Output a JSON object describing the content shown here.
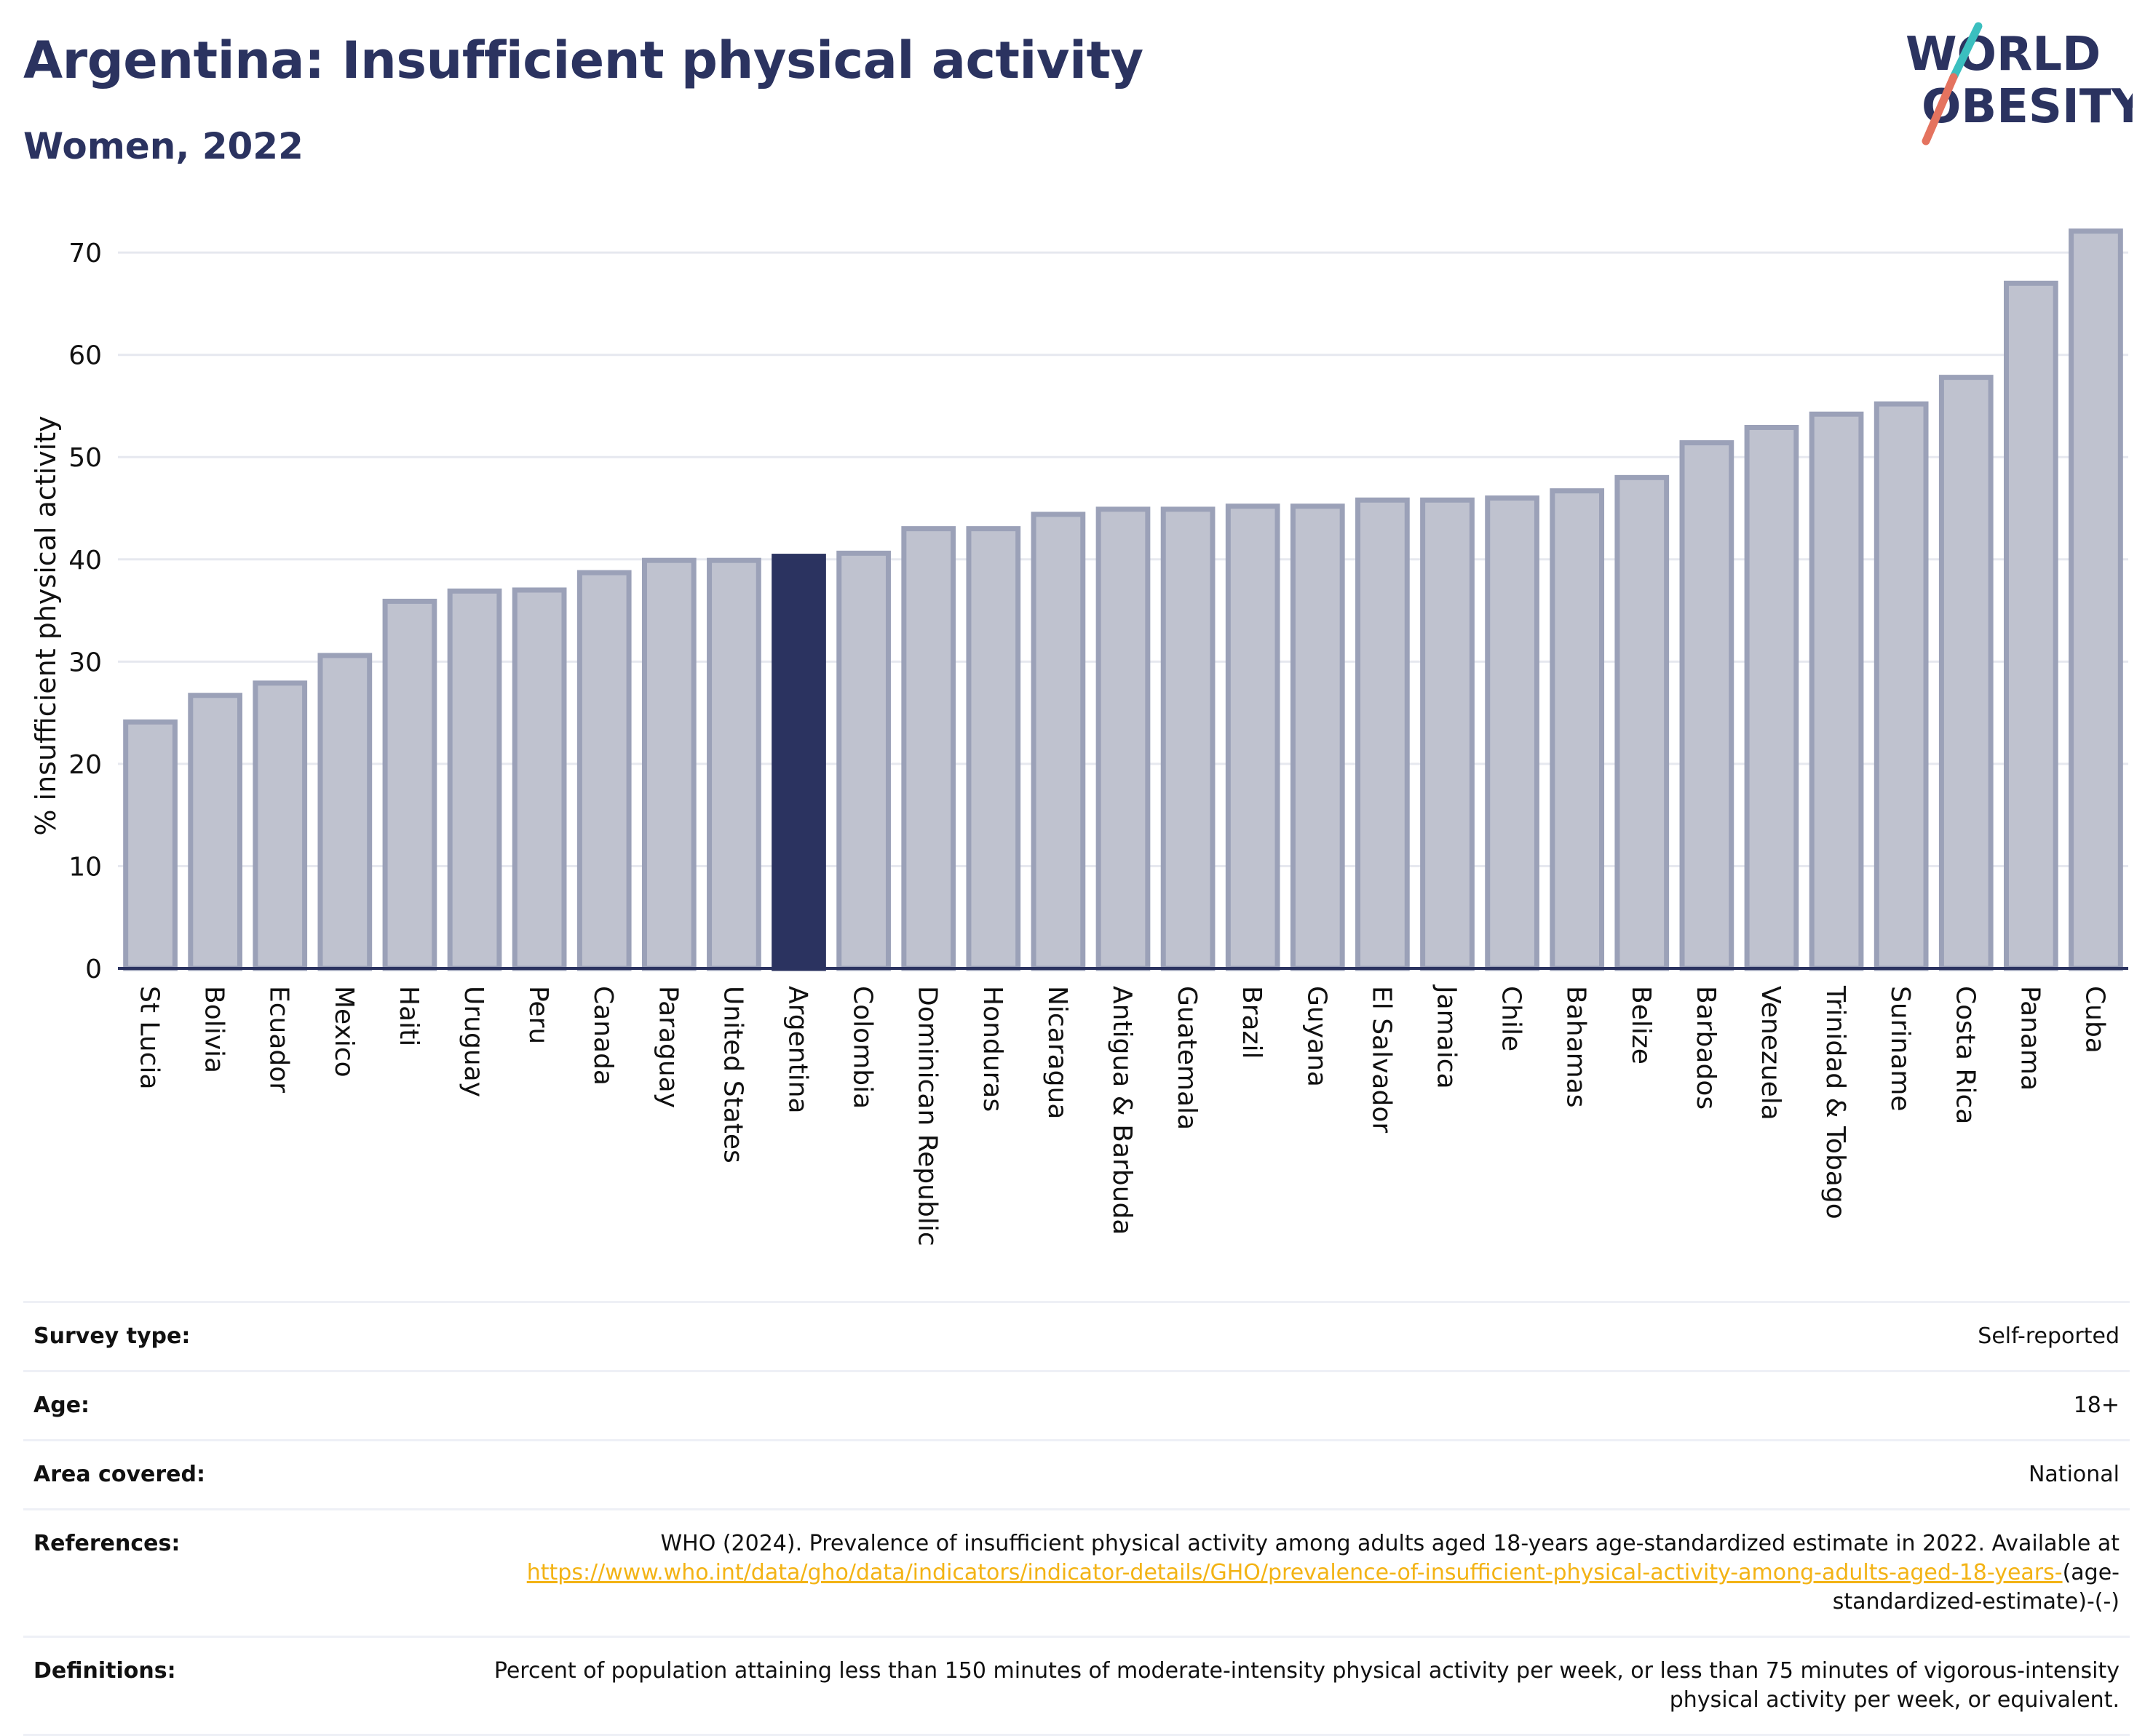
{
  "header": {
    "title": "Argentina: Insufficient physical activity",
    "subtitle": "Women, 2022"
  },
  "logo": {
    "line1": "WORLD",
    "line2": "OBESITY",
    "text_color": "#2b3360",
    "slash_colors": [
      "#3bbfbf",
      "#e4735f"
    ]
  },
  "colors": {
    "bar_fill": "#bfc2cf",
    "bar_stroke": "#9ba1b8",
    "highlight": "#2b3360",
    "grid": "#e6e8ef",
    "link": "#f3b315"
  },
  "chart_data": {
    "type": "bar",
    "title": "Argentina: Insufficient physical activity",
    "subtitle": "Women, 2022",
    "xlabel": "",
    "ylabel": "% insufficient physical activity",
    "ylim": [
      0,
      72.5
    ],
    "yticks": [
      0,
      10,
      20,
      30,
      40,
      50,
      60,
      70
    ],
    "grid": true,
    "highlight": "Argentina",
    "categories": [
      "St Lucia",
      "Bolivia",
      "Ecuador",
      "Mexico",
      "Haiti",
      "Uruguay",
      "Peru",
      "Canada",
      "Paraguay",
      "United States",
      "Argentina",
      "Colombia",
      "Dominican Republic",
      "Honduras",
      "Nicaragua",
      "Antigua & Barbuda",
      "Guatemala",
      "Brazil",
      "Guyana",
      "El Salvador",
      "Jamaica",
      "Chile",
      "Bahamas",
      "Belize",
      "Barbados",
      "Venezuela",
      "Trinidad & Tobago",
      "Suriname",
      "Costa Rica",
      "Panama",
      "Cuba"
    ],
    "values": [
      24.1,
      26.7,
      27.9,
      30.6,
      35.9,
      36.9,
      37.0,
      38.7,
      39.9,
      39.9,
      40.3,
      40.6,
      43.0,
      43.0,
      44.4,
      44.9,
      44.9,
      45.2,
      45.2,
      45.8,
      45.8,
      46.0,
      46.7,
      48.0,
      51.4,
      52.9,
      54.2,
      55.2,
      57.8,
      67.0,
      72.1
    ]
  },
  "info": {
    "rows": [
      {
        "label": "Survey type:",
        "value": "Self-reported"
      },
      {
        "label": "Age:",
        "value": "18+"
      },
      {
        "label": "Area covered:",
        "value": "National"
      }
    ],
    "references": {
      "label": "References:",
      "text": "WHO (2024). Prevalence of insufficient physical activity among adults aged 18-years age-standardized estimate in 2022. Available at",
      "link": "https://www.who.int/data/gho/data/indicators/indicator-details/GHO/prevalence-of-insufficient-physical-activity-among-adults-aged-18-years-",
      "suffix": "(age-standardized-estimate)-(-)"
    },
    "definitions": {
      "label": "Definitions:",
      "value": "Percent of population attaining less than 150 minutes of moderate-intensity physical activity per week, or less than 75 minutes of vigorous-intensity physical activity per week, or equivalent."
    }
  }
}
